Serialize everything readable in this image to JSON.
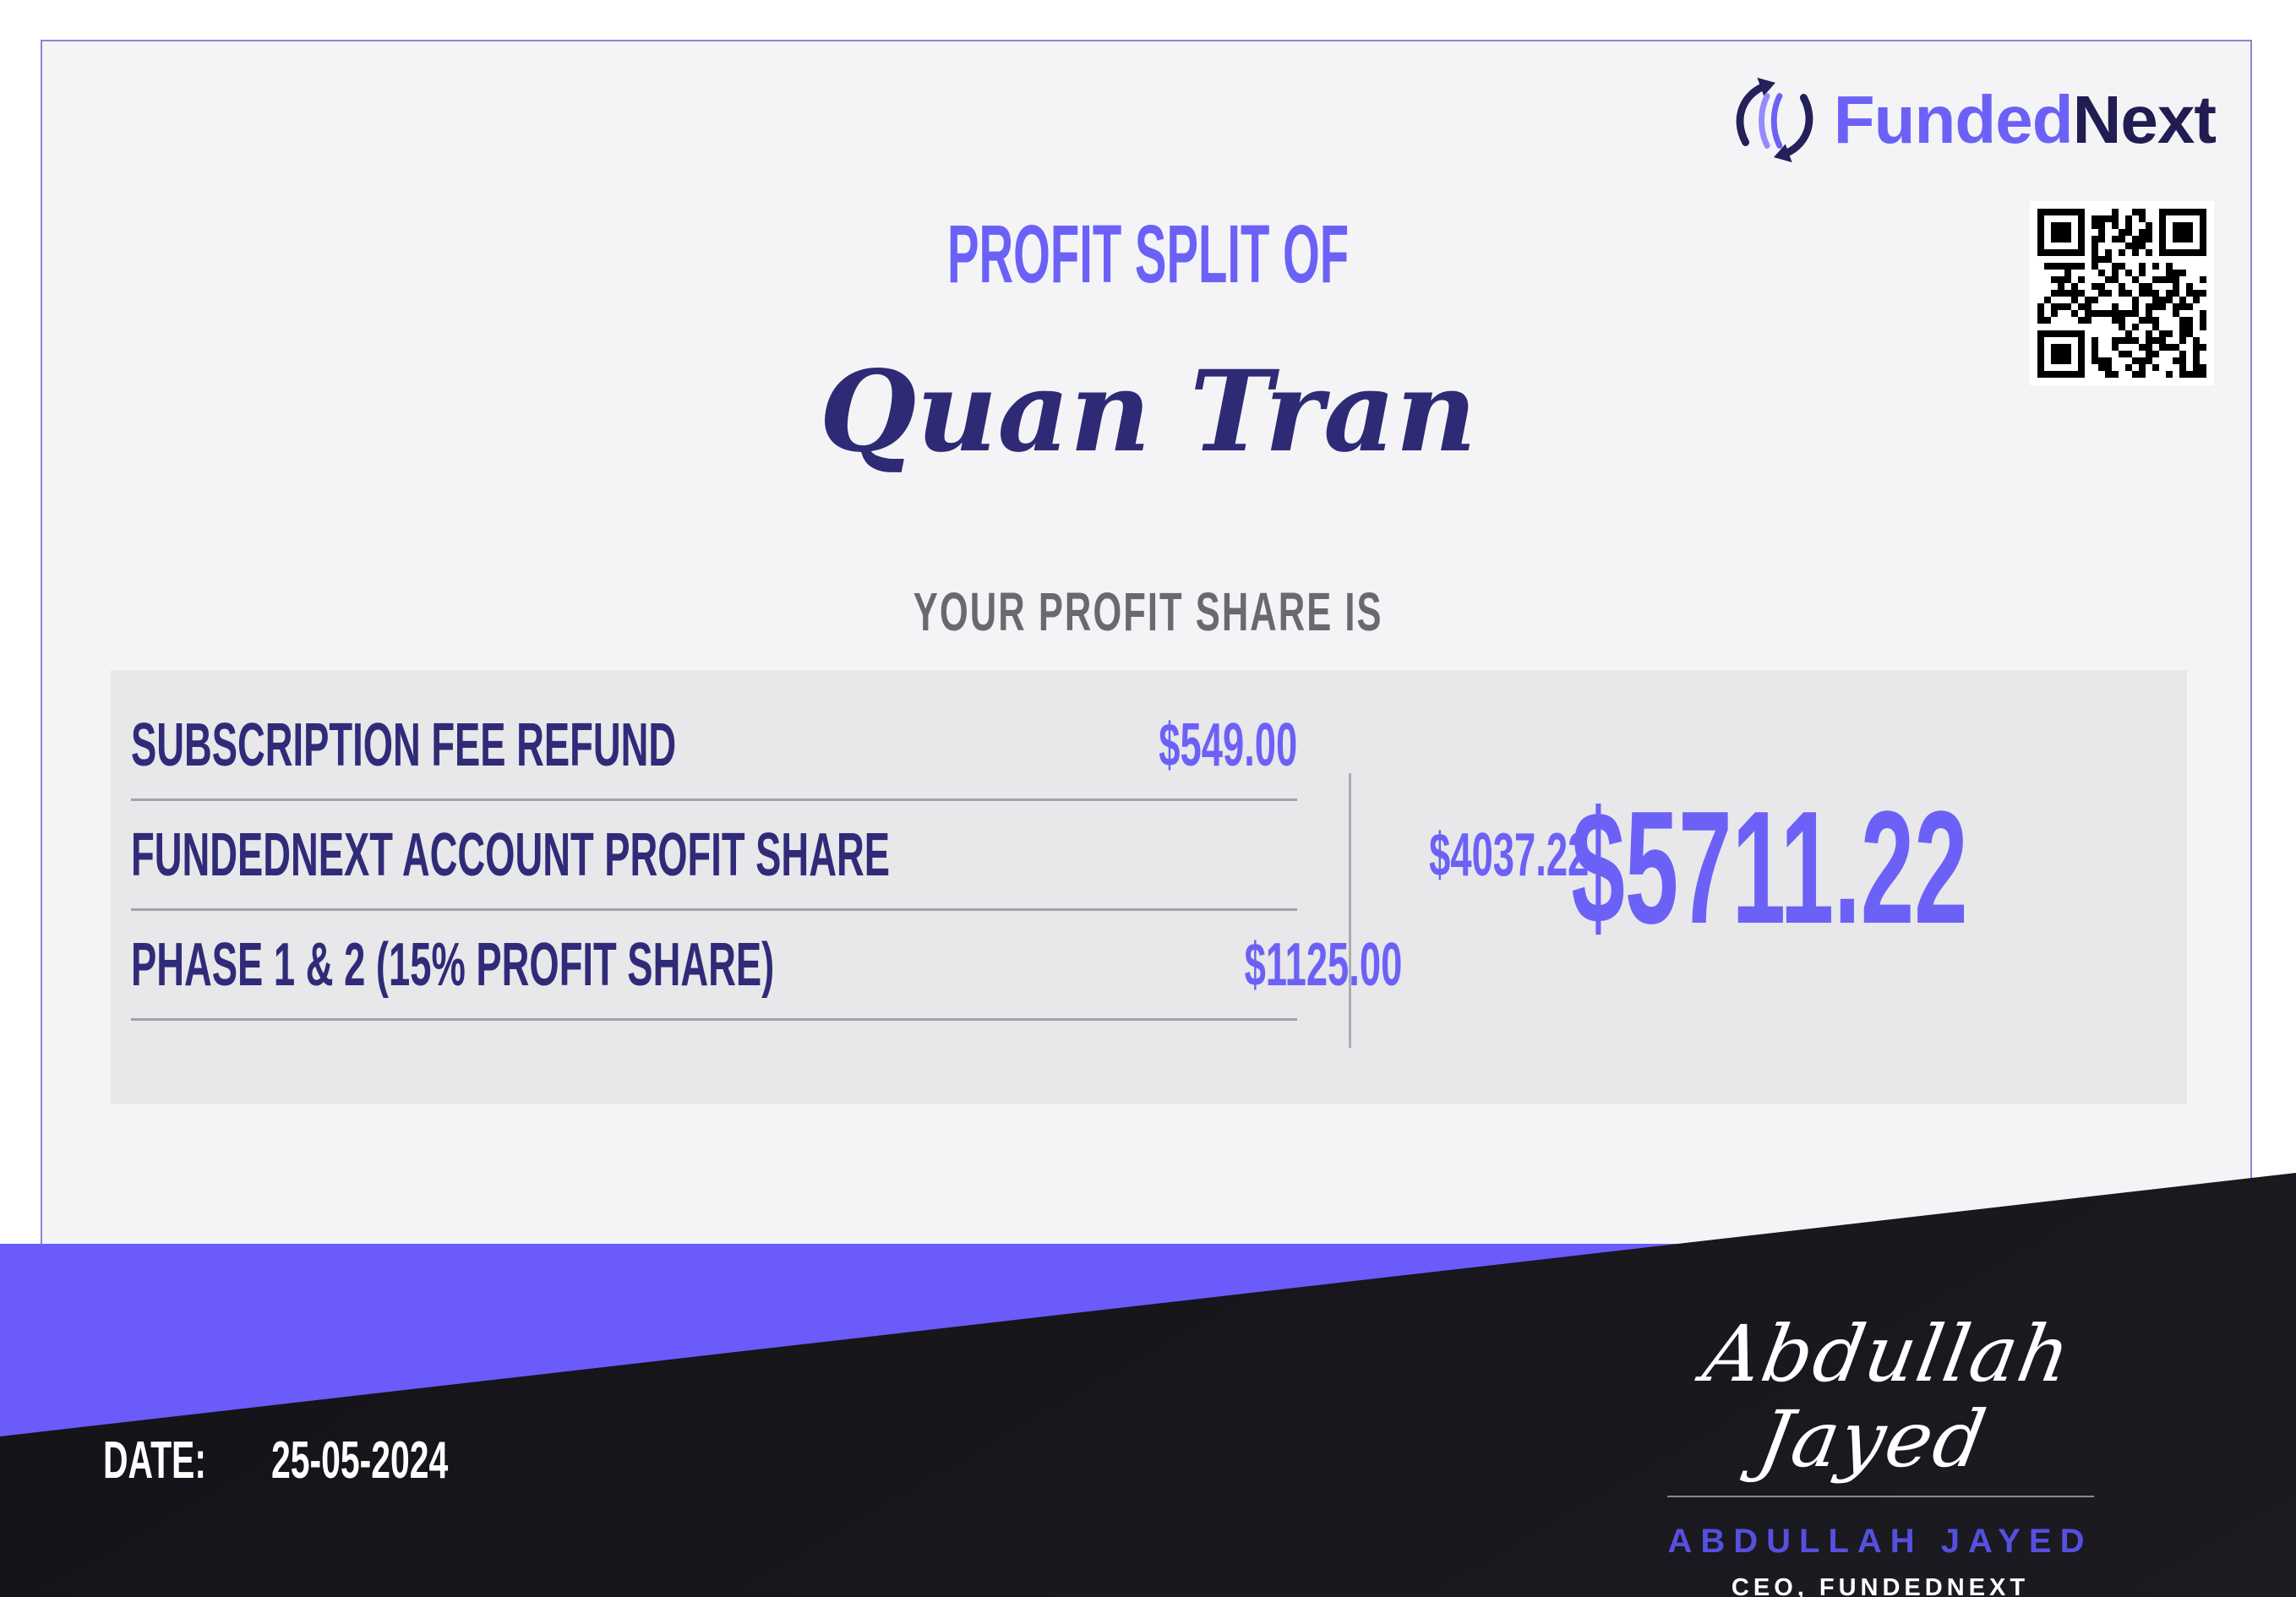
{
  "brand": {
    "wordmark_part1": "Funded",
    "wordmark_part2": "Next",
    "logo_icon": "swap-arrows-icon",
    "qr_icon": "qr-code"
  },
  "header": {
    "title": "PROFIT SPLIT OF",
    "recipient_name": "Quan Tran",
    "subtitle": "YOUR PROFIT SHARE IS"
  },
  "breakdown": {
    "rows": [
      {
        "label": "SUBSCRIPTION FEE REFUND",
        "amount": "$549.00"
      },
      {
        "label": "FUNDEDNEXT ACCOUNT PROFIT SHARE",
        "amount": "$4037.22"
      },
      {
        "label": "PHASE 1 & 2 (15% PROFIT SHARE)",
        "amount": "$1125.00"
      }
    ],
    "total": "$5711.22"
  },
  "footer": {
    "date_label": "DATE:",
    "date_value": "25-05-2024",
    "signature_script": "Abdullah Jayed",
    "signatory_name": "ABDULLAH JAYED",
    "signatory_title": "CEO, FUNDEDNEXT"
  },
  "colors": {
    "accent_purple": "#6c61f6",
    "navy": "#2e2a75",
    "wordmark_dark": "#211d52",
    "panel_bg": "#f4f4f6",
    "table_bg": "#e8e7ea",
    "heading_gray": "#6a6a6e",
    "band_purple": "#6b5bfb",
    "wedge_black": "#15151a",
    "signature_purple": "#564fe0"
  }
}
